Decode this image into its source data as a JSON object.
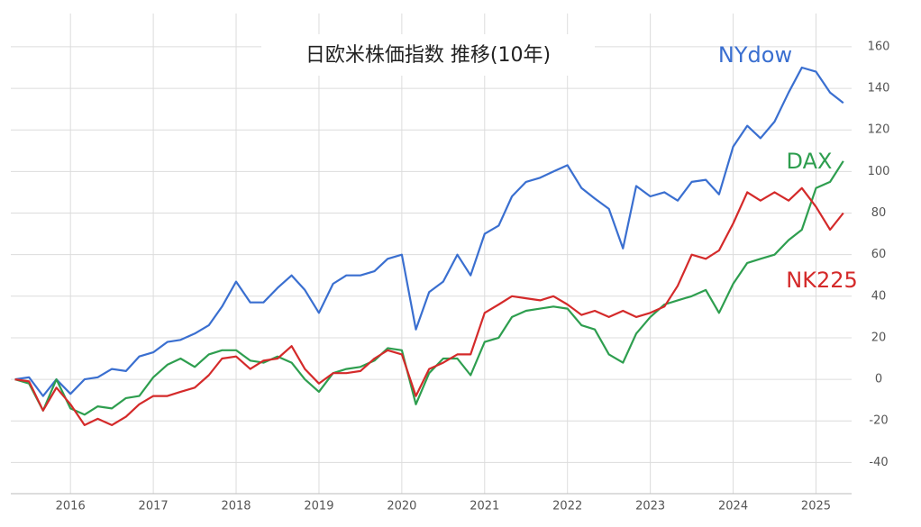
{
  "chart_data": {
    "type": "line",
    "title": "日欧米株価指数 推移(10年)",
    "x": [
      2015.33,
      2015.5,
      2015.67,
      2015.83,
      2016,
      2016.17,
      2016.33,
      2016.5,
      2016.67,
      2016.83,
      2017,
      2017.17,
      2017.33,
      2017.5,
      2017.67,
      2017.83,
      2018,
      2018.17,
      2018.33,
      2018.5,
      2018.67,
      2018.83,
      2019,
      2019.17,
      2019.33,
      2019.5,
      2019.67,
      2019.83,
      2020,
      2020.17,
      2020.33,
      2020.5,
      2020.67,
      2020.83,
      2021,
      2021.17,
      2021.33,
      2021.5,
      2021.67,
      2021.83,
      2022,
      2022.17,
      2022.33,
      2022.5,
      2022.67,
      2022.83,
      2023,
      2023.17,
      2023.33,
      2023.5,
      2023.67,
      2023.83,
      2024,
      2024.17,
      2024.33,
      2024.5,
      2024.67,
      2024.83,
      2025,
      2025.17,
      2025.33
    ],
    "series": [
      {
        "name": "NYdow",
        "color": "#3a6fd0",
        "values": [
          0,
          1,
          -8,
          0,
          -7,
          0,
          1,
          5,
          4,
          11,
          13,
          18,
          19,
          22,
          26,
          35,
          47,
          37,
          37,
          44,
          50,
          43,
          32,
          46,
          50,
          50,
          52,
          58,
          60,
          24,
          42,
          47,
          60,
          50,
          70,
          74,
          88,
          95,
          97,
          100,
          103,
          92,
          87,
          82,
          63,
          93,
          88,
          90,
          86,
          95,
          96,
          89,
          112,
          122,
          116,
          124,
          138,
          150,
          148,
          138,
          133
        ]
      },
      {
        "name": "DAX",
        "color": "#2e9e4f",
        "values": [
          0,
          -2,
          -15,
          0,
          -14,
          -17,
          -13,
          -14,
          -9,
          -8,
          1,
          7,
          10,
          6,
          12,
          14,
          14,
          9,
          8,
          11,
          8,
          0,
          -6,
          3,
          5,
          6,
          9,
          15,
          14,
          -12,
          3,
          10,
          10,
          2,
          18,
          20,
          30,
          33,
          34,
          35,
          34,
          26,
          24,
          12,
          8,
          22,
          30,
          36,
          38,
          40,
          43,
          32,
          46,
          56,
          58,
          60,
          67,
          72,
          92,
          95,
          105
        ]
      },
      {
        "name": "NK225",
        "color": "#d42a2a",
        "values": [
          0,
          -1,
          -15,
          -4,
          -12,
          -22,
          -19,
          -22,
          -18,
          -12,
          -8,
          -8,
          -6,
          -4,
          2,
          10,
          11,
          5,
          9,
          10,
          16,
          5,
          -2,
          3,
          3,
          4,
          10,
          14,
          12,
          -8,
          5,
          8,
          12,
          12,
          32,
          36,
          40,
          39,
          38,
          40,
          36,
          31,
          33,
          30,
          33,
          30,
          32,
          35,
          45,
          60,
          58,
          62,
          75,
          90,
          86,
          90,
          86,
          92,
          83,
          72,
          80
        ]
      }
    ],
    "xlim": [
      2015.28,
      2025.43
    ],
    "xticks": [
      2016,
      2017,
      2018,
      2019,
      2020,
      2021,
      2022,
      2023,
      2024,
      2025
    ],
    "ylim": [
      -55,
      176
    ],
    "yticks": [
      -40,
      -20,
      0,
      20,
      40,
      60,
      80,
      100,
      120,
      140,
      160
    ],
    "grid": true
  }
}
